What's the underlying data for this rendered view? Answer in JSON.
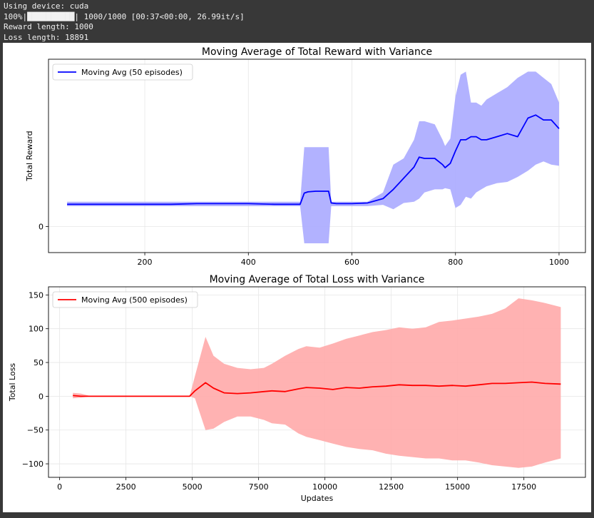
{
  "console": {
    "lines": [
      "Using device: cuda",
      "100%|██████████| 1000/1000 [00:37<00:00, 26.99it/s]",
      "Reward length: 1000",
      "Loss length: 18891"
    ]
  },
  "colors": {
    "console_bg": "#383838",
    "reward_line": "#0000ff",
    "reward_band": "#aaaaff",
    "loss_line": "#ff0000",
    "loss_band": "#ffaaaa"
  },
  "chart_data": [
    {
      "type": "line",
      "title": "Moving Average of Total Reward with Variance",
      "xlabel": "",
      "ylabel": "Total Reward",
      "xlim": [
        14,
        1051
      ],
      "ylim": [
        -42,
        270
      ],
      "xticks": [
        200,
        400,
        600,
        800,
        1000
      ],
      "xtick_labels": [
        "200",
        "400",
        "600",
        "800",
        "1000"
      ],
      "yticks": [
        0
      ],
      "ytick_labels": [
        "0"
      ],
      "grid": true,
      "legend": "top-left",
      "series": [
        {
          "name": "Moving Avg (50 episodes)",
          "x": [
            50,
            100,
            150,
            200,
            250,
            300,
            350,
            400,
            450,
            500,
            508,
            515,
            530,
            545,
            555,
            560,
            570,
            600,
            630,
            660,
            680,
            700,
            720,
            730,
            740,
            760,
            775,
            780,
            790,
            800,
            810,
            820,
            830,
            840,
            850,
            860,
            880,
            900,
            920,
            940,
            955,
            970,
            985,
            1000
          ],
          "y": [
            36,
            36,
            36,
            36,
            36,
            37,
            37,
            37,
            36,
            36,
            54,
            56,
            57,
            57,
            57,
            38,
            37,
            37,
            38,
            45,
            60,
            78,
            96,
            112,
            110,
            110,
            100,
            95,
            102,
            122,
            140,
            140,
            145,
            145,
            140,
            140,
            145,
            150,
            145,
            175,
            180,
            172,
            172,
            158
          ],
          "lower": [
            33,
            33,
            33,
            33,
            33,
            33,
            33,
            33,
            33,
            33,
            -27,
            -27,
            -27,
            -27,
            -27,
            33,
            33,
            33,
            33,
            35,
            28,
            38,
            40,
            45,
            55,
            60,
            60,
            62,
            60,
            30,
            35,
            48,
            45,
            55,
            60,
            65,
            70,
            72,
            80,
            90,
            100,
            105,
            100,
            98
          ],
          "upper": [
            40,
            40,
            40,
            40,
            40,
            40,
            40,
            40,
            40,
            40,
            128,
            128,
            128,
            128,
            128,
            40,
            40,
            40,
            40,
            55,
            100,
            110,
            140,
            170,
            170,
            165,
            140,
            130,
            142,
            210,
            245,
            250,
            200,
            200,
            195,
            205,
            215,
            225,
            240,
            250,
            250,
            240,
            230,
            200
          ]
        }
      ]
    },
    {
      "type": "line",
      "title": "Moving Average of Total Loss with Variance",
      "xlabel": "Updates",
      "ylabel": "Total Loss",
      "xlim": [
        -420,
        19820
      ],
      "ylim": [
        -120,
        162
      ],
      "xticks": [
        0,
        2500,
        5000,
        7500,
        10000,
        12500,
        15000,
        17500
      ],
      "xtick_labels": [
        "0",
        "2500",
        "5000",
        "7500",
        "10000",
        "12500",
        "15000",
        "17500"
      ],
      "yticks": [
        -100,
        -50,
        0,
        50,
        100,
        150
      ],
      "ytick_labels": [
        "−100",
        "−50",
        "0",
        "50",
        "100",
        "150"
      ],
      "grid": true,
      "legend": "top-left",
      "series": [
        {
          "name": "Moving Avg (500 episodes)",
          "x": [
            500,
            800,
            1200,
            2000,
            3000,
            4000,
            4900,
            5100,
            5500,
            5800,
            6200,
            6700,
            7200,
            7700,
            8000,
            8500,
            9000,
            9300,
            9800,
            10300,
            10800,
            11300,
            11800,
            12300,
            12800,
            13300,
            13800,
            14300,
            14800,
            15300,
            15800,
            16300,
            16800,
            17300,
            17800,
            18300,
            18891
          ],
          "y": [
            1,
            0,
            0,
            0,
            0,
            0,
            0,
            8,
            20,
            12,
            5,
            4,
            5,
            7,
            8,
            7,
            11,
            13,
            12,
            10,
            13,
            12,
            14,
            15,
            17,
            16,
            16,
            15,
            16,
            15,
            17,
            19,
            19,
            20,
            21,
            19,
            18
          ],
          "lower": [
            -3,
            -2,
            0,
            0,
            0,
            0,
            0,
            -3,
            -50,
            -48,
            -38,
            -30,
            -30,
            -35,
            -40,
            -42,
            -55,
            -60,
            -65,
            -70,
            -75,
            -78,
            -80,
            -85,
            -88,
            -90,
            -92,
            -92,
            -95,
            -95,
            -98,
            -102,
            -104,
            -106,
            -104,
            -98,
            -92
          ],
          "upper": [
            5,
            4,
            0,
            0,
            0,
            0,
            0,
            30,
            88,
            60,
            48,
            42,
            40,
            42,
            48,
            60,
            70,
            74,
            72,
            78,
            85,
            90,
            95,
            98,
            102,
            100,
            102,
            110,
            112,
            115,
            118,
            122,
            130,
            145,
            142,
            138,
            132
          ]
        }
      ]
    }
  ]
}
